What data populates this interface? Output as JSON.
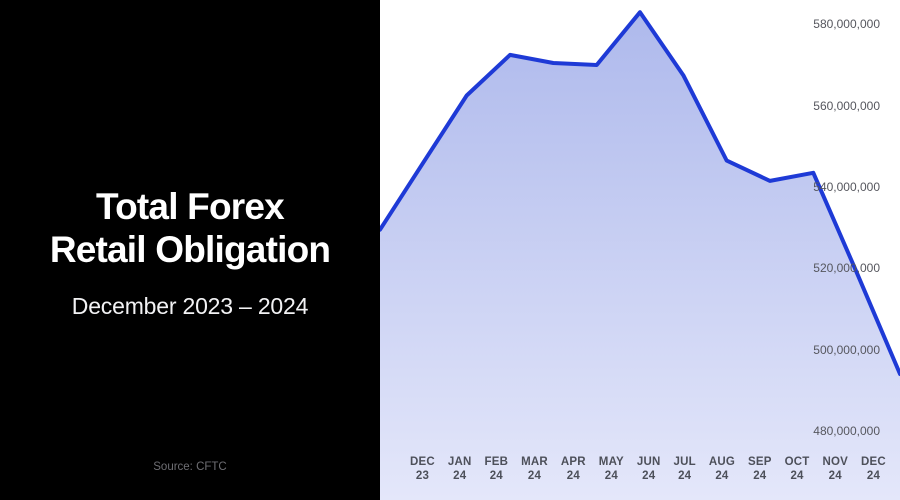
{
  "left_panel": {
    "title_line1": "Total Forex",
    "title_line2": "Retail Obligation",
    "subtitle": "December 2023 – 2024",
    "source": "Source: CFTC",
    "background": "#000000",
    "title_color": "#ffffff",
    "source_color": "#6e6e73"
  },
  "chart_data": {
    "type": "area",
    "title": "Total Forex Retail Obligation",
    "subtitle": "December 2023 – 2024",
    "source": "Source: CFTC",
    "categories": [
      "DEC 23",
      "JAN 24",
      "FEB 24",
      "MAR 24",
      "APR 24",
      "MAY 24",
      "JUN 24",
      "JUL 24",
      "AUG 24",
      "SEP 24",
      "OCT 24",
      "NOV 24",
      "DEC 24"
    ],
    "x_tick_labels": [
      [
        "DEC",
        "23"
      ],
      [
        "JAN",
        "24"
      ],
      [
        "FEB",
        "24"
      ],
      [
        "MAR",
        "24"
      ],
      [
        "APR",
        "24"
      ],
      [
        "MAY",
        "24"
      ],
      [
        "JUN",
        "24"
      ],
      [
        "JUL",
        "24"
      ],
      [
        "AUG",
        "24"
      ],
      [
        "SEP",
        "24"
      ],
      [
        "OCT",
        "24"
      ],
      [
        "NOV",
        "24"
      ],
      [
        "DEC",
        "24"
      ]
    ],
    "values": [
      529500000,
      546000000,
      562500000,
      572500000,
      570500000,
      570000000,
      583000000,
      567500000,
      546500000,
      541500000,
      543500000,
      519000000,
      494000000
    ],
    "y_ticks": [
      {
        "value": 580000000,
        "label": "580,000,000"
      },
      {
        "value": 560000000,
        "label": "560,000,000"
      },
      {
        "value": 540000000,
        "label": "540,000,000"
      },
      {
        "value": 520000000,
        "label": "520,000,000"
      },
      {
        "value": 500000000,
        "label": "500,000,000"
      },
      {
        "value": 480000000,
        "label": "480,000,000"
      }
    ],
    "ylim": [
      463000000,
      586000000
    ],
    "grid": false,
    "legend": false,
    "line_color": "#1e3ad6",
    "fill_top": "#aeb9ec",
    "fill_bottom": "#e4e7fa",
    "x_label_color": "#4d505a",
    "y_label_color": "#56575e"
  }
}
